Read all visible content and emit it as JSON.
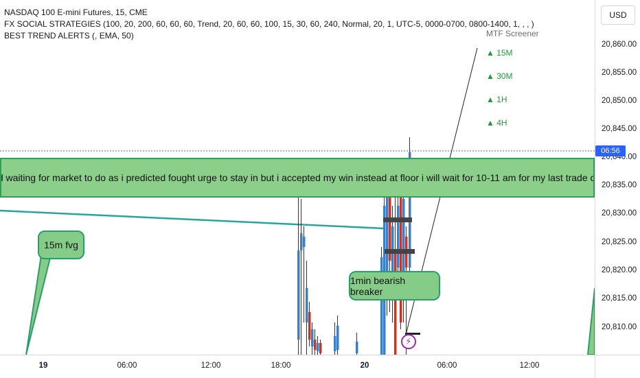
{
  "legend": {
    "line1": "NASDAQ 100 E-mini Futures, 15, CME",
    "line2": "FX SOCIAL STRATEGIES (100, 20, 200, 60, 60, 60, Trend, 20, 60, 60, 100, 15, 30, 60, 240, Normal, 20, 1, UTC-5, 0000-0700, 0800-1400, 1, , , )",
    "line3": "BEST TREND ALERTS (, EMA, 50)"
  },
  "currency": "USD",
  "price_axis": {
    "ticks": [
      "20,860.00",
      "20,855.00",
      "20,850.00",
      "20,845.00",
      "20,840.00",
      "20,835.00",
      "20,830.00",
      "20,825.00",
      "20,820.00",
      "20,815.00",
      "20,810.00"
    ],
    "countdown": "06:56"
  },
  "time_axis": {
    "ticks": [
      {
        "label": "19",
        "bold": true
      },
      {
        "label": "06:00",
        "bold": false
      },
      {
        "label": "12:00",
        "bold": false
      },
      {
        "label": "18:00",
        "bold": false
      },
      {
        "label": "20",
        "bold": true
      },
      {
        "label": "06:00",
        "bold": false
      },
      {
        "label": "12:00",
        "bold": false
      }
    ]
  },
  "banner": {
    "text": "tent and waiting for market to do as i   predicted fought urge to stay in but i   accepted my win instead at      floor i   will wait for 10-11 am for my last trade of"
  },
  "callouts": {
    "fvg": "15m fvg",
    "breaker": "1min bearish breaker"
  },
  "mtf_screener": {
    "title": "MTF Screener",
    "rows": [
      "▲ 15M",
      "▲ 30M",
      "▲ 1H",
      "▲ 4H"
    ]
  },
  "colors": {
    "bull": "#3d7fc4",
    "bear": "#c0392b",
    "banner_fill": "#8ccf8b",
    "banner_border": "#2f9e57",
    "trend_line": "#26a69a",
    "badge": "#2962ff",
    "screener_up": "#1e9e3a"
  }
}
